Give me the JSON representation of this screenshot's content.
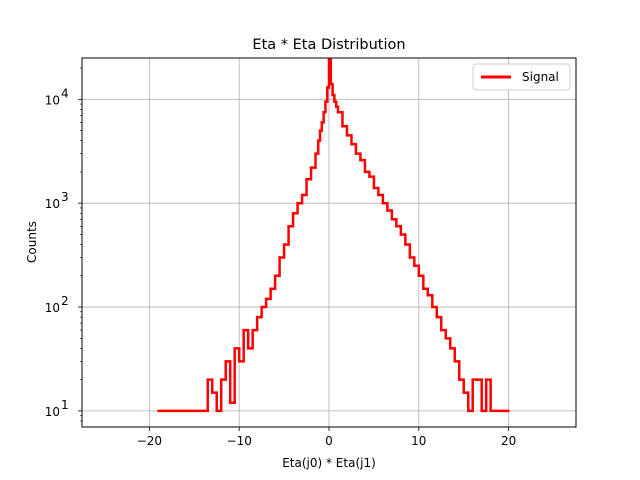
{
  "chart_data": {
    "type": "line",
    "drawstyle": "steps",
    "title": "Eta * Eta Distribution",
    "xlabel": "Eta(j0) * Eta(j1)",
    "ylabel": "Counts",
    "xlim": [
      -27.5,
      27.5
    ],
    "ylim": [
      7,
      25000
    ],
    "yscale": "log",
    "grid": true,
    "legend_position": "top-right",
    "x_ticks": [
      -20,
      -10,
      0,
      10,
      20
    ],
    "x_tick_labels": [
      "−20",
      "−10",
      "0",
      "10",
      "20"
    ],
    "y_ticks": [
      10,
      100,
      1000,
      10000
    ],
    "y_tick_labels": [
      [
        "10",
        "1"
      ],
      [
        "10",
        "2"
      ],
      [
        "10",
        "3"
      ],
      [
        "10",
        "4"
      ]
    ],
    "series": [
      {
        "name": "Signal",
        "color": "#ff0000",
        "x": [
          -19,
          -17.2,
          -16.8,
          -15,
          -14.5,
          -14,
          -13.5,
          -13,
          -12.5,
          -12,
          -11.5,
          -11,
          -10.5,
          -10,
          -9.5,
          -9,
          -8.5,
          -8,
          -7.5,
          -7,
          -6.5,
          -6,
          -5.5,
          -5,
          -4.5,
          -4,
          -3.5,
          -3,
          -2.5,
          -2,
          -1.5,
          -1.2,
          -1,
          -0.8,
          -0.6,
          -0.4,
          -0.2,
          0,
          0.2,
          0.4,
          0.6,
          0.8,
          1,
          1.5,
          2,
          2.5,
          3,
          3.5,
          4,
          4.5,
          5,
          5.5,
          6,
          6.5,
          7,
          7.5,
          8,
          8.5,
          9,
          9.5,
          10,
          10.5,
          11,
          11.5,
          12,
          12.5,
          13,
          13.5,
          14,
          14.5,
          15,
          15.5,
          16,
          16.5,
          17,
          17.5,
          18,
          20
        ],
        "values": [
          10,
          10,
          10,
          10,
          10,
          10,
          20,
          15,
          10,
          20,
          30,
          12,
          40,
          30,
          60,
          40,
          60,
          80,
          100,
          120,
          150,
          200,
          300,
          400,
          600,
          800,
          1000,
          1200,
          1700,
          2200,
          3000,
          4000,
          5000,
          6000,
          7500,
          9500,
          13000,
          24000,
          14000,
          11000,
          9500,
          8500,
          7500,
          5500,
          4500,
          3700,
          3000,
          2600,
          2000,
          1800,
          1400,
          1200,
          1000,
          850,
          700,
          600,
          500,
          400,
          300,
          250,
          200,
          150,
          130,
          100,
          80,
          60,
          50,
          40,
          30,
          20,
          15,
          10,
          20,
          20,
          10,
          20,
          10,
          10
        ]
      }
    ]
  }
}
